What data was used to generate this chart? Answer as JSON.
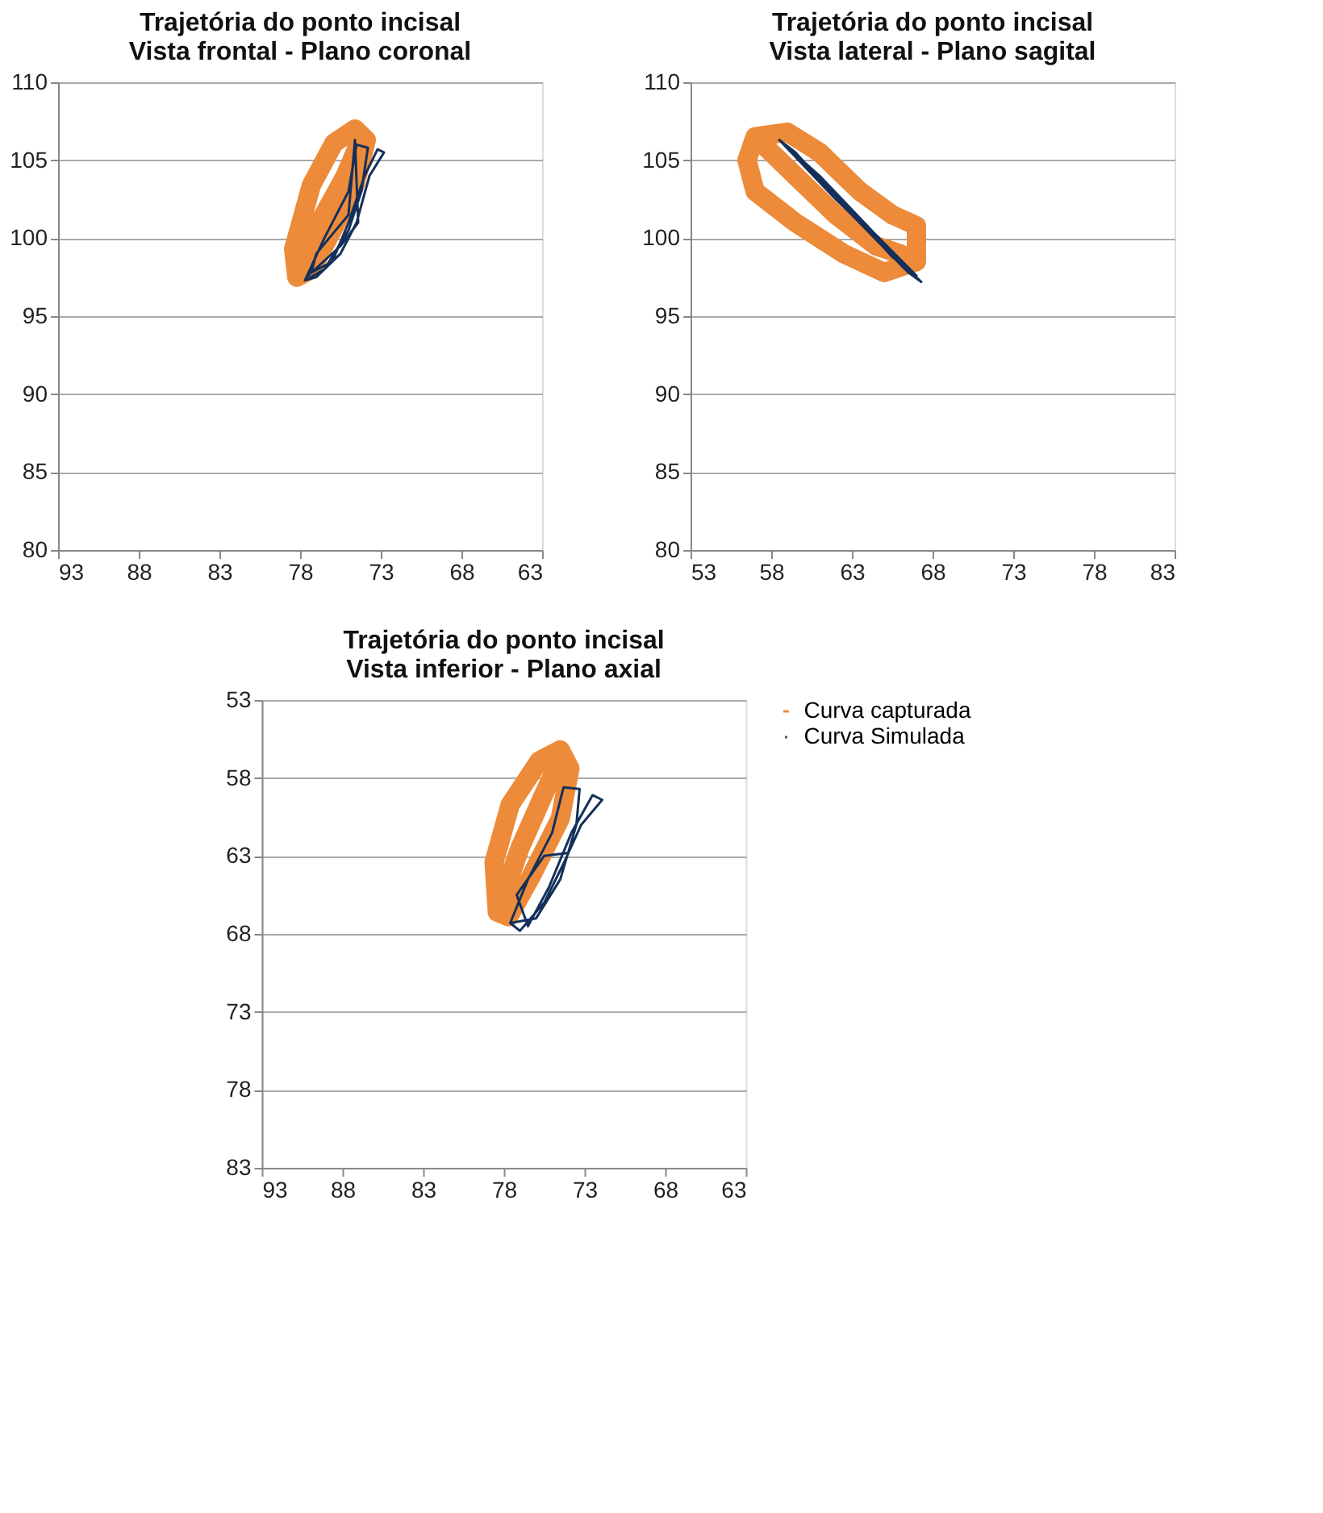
{
  "chart_data": [
    {
      "type": "line",
      "title": "Trajetória do ponto incisal\nVista frontal - Plano coronal",
      "xlim": [
        93,
        63
      ],
      "xticks": [
        93,
        88,
        83,
        78,
        73,
        68,
        63
      ],
      "ylim": [
        80,
        110
      ],
      "yticks": [
        80,
        85,
        90,
        95,
        100,
        105,
        110
      ],
      "grid": "y",
      "legend": false,
      "series": [
        {
          "color": "#ed8b3a",
          "x": [
            78.2,
            78.4,
            77.3,
            75.9,
            74.6,
            73.9,
            74.6,
            75.9,
            77.3,
            78.2,
            76.8,
            75.2,
            74.3
          ],
          "values": [
            97.5,
            99.3,
            103.4,
            106.1,
            107.0,
            106.3,
            103.4,
            100.7,
            98.0,
            97.5,
            101.0,
            104.0,
            106.2
          ]
        },
        {
          "color": "#14305a",
          "x": [
            77.7,
            76.5,
            75.0,
            74.5,
            73.8,
            74.2,
            75.0,
            76.5,
            77.7,
            77.0,
            75.5,
            74.5,
            73.7,
            72.8,
            73.2,
            74.0,
            75.0,
            76.0,
            77.3,
            77.0,
            75.0,
            74.6,
            74.4,
            75.5,
            77.5
          ],
          "values": [
            97.3,
            100.0,
            103.0,
            106.0,
            105.8,
            103.0,
            100.5,
            98.0,
            97.3,
            97.5,
            99.0,
            101.0,
            104.0,
            105.5,
            105.7,
            104.0,
            101.0,
            98.5,
            97.8,
            99.0,
            101.5,
            106.3,
            101.0,
            99.5,
            97.6
          ]
        }
      ]
    },
    {
      "type": "line",
      "title": "Trajetória do ponto incisal\nVista lateral - Plano sagital",
      "xlim": [
        53,
        83
      ],
      "xticks": [
        53,
        58,
        63,
        68,
        73,
        78,
        83
      ],
      "ylim": [
        80,
        110
      ],
      "yticks": [
        80,
        85,
        90,
        95,
        100,
        105,
        110
      ],
      "grid": "y",
      "legend": false,
      "series": [
        {
          "color": "#ed8b3a",
          "x": [
            57.0,
            59.0,
            61.0,
            63.5,
            65.5,
            67.0,
            67.0,
            65.0,
            62.5,
            59.5,
            57.0,
            56.5,
            57.0,
            59.5,
            62.0,
            64.5,
            66.0
          ],
          "values": [
            106.5,
            106.8,
            105.5,
            103.0,
            101.5,
            100.8,
            98.5,
            97.8,
            99.0,
            101.0,
            103.0,
            105.0,
            106.5,
            104.0,
            101.5,
            99.5,
            99.0
          ]
        },
        {
          "color": "#14305a",
          "x": [
            58.5,
            62.0,
            65.0,
            67.3,
            66.5,
            63.0,
            59.5,
            58.5,
            61.0,
            64.5,
            67.0,
            65.5,
            62.0,
            58.8
          ],
          "values": [
            106.3,
            102.5,
            99.5,
            97.2,
            97.8,
            101.5,
            105.5,
            106.3,
            104.0,
            100.2,
            97.6,
            98.8,
            102.8,
            106.0
          ]
        }
      ]
    },
    {
      "type": "line",
      "title": "Trajetória do ponto incisal\nVista inferior - Plano axial",
      "xlim": [
        93,
        63
      ],
      "xticks": [
        93,
        88,
        83,
        78,
        73,
        68,
        63
      ],
      "ylim": [
        83,
        53
      ],
      "yticks": [
        53,
        58,
        63,
        68,
        73,
        78,
        83
      ],
      "grid": "y",
      "legend": "right",
      "series": [
        {
          "name": "Curva capturada",
          "color": "#ed8b3a",
          "x": [
            78.4,
            78.6,
            77.6,
            75.8,
            74.5,
            73.9,
            74.5,
            76.3,
            77.7,
            78.4,
            77.0,
            75.5,
            74.6
          ],
          "values": [
            66.6,
            63.4,
            59.7,
            56.9,
            56.2,
            57.4,
            60.6,
            64.3,
            66.9,
            66.6,
            62.5,
            59.0,
            57.0
          ]
        },
        {
          "name": "Curva Simulada",
          "color": "#14305a",
          "x": [
            77.6,
            76.5,
            75.0,
            74.3,
            73.3,
            73.5,
            74.5,
            76.0,
            77.6,
            77.0,
            75.5,
            74.3,
            73.2,
            71.9,
            72.5,
            73.8,
            75.2,
            76.5,
            77.2,
            75.5,
            74.0
          ],
          "values": [
            67.3,
            64.5,
            61.5,
            58.6,
            58.7,
            61.0,
            64.5,
            67.0,
            67.3,
            67.8,
            66.0,
            63.5,
            61.0,
            59.4,
            59.1,
            61.5,
            65.0,
            67.5,
            65.5,
            63.0,
            62.8
          ]
        }
      ]
    }
  ]
}
